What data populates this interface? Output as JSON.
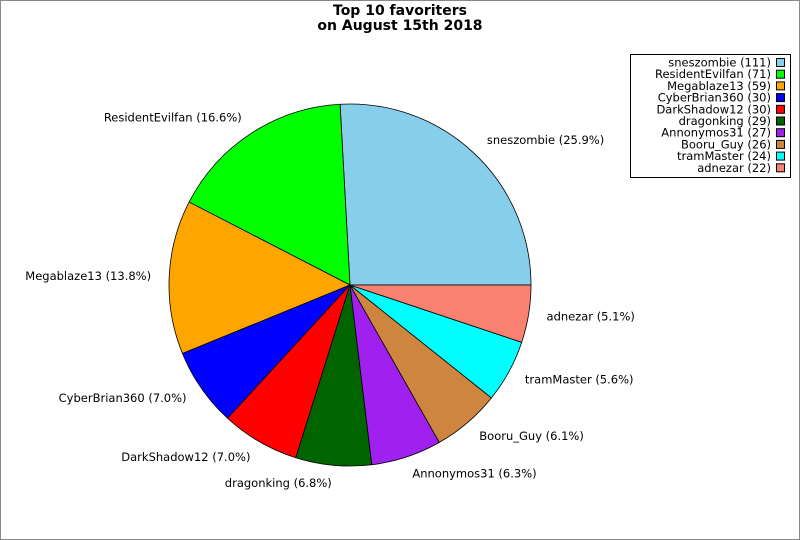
{
  "chart_data": {
    "type": "pie",
    "title_lines": [
      "Top 10 favoriters",
      "on August 15th 2018"
    ],
    "values": [
      111,
      71,
      59,
      30,
      30,
      29,
      27,
      26,
      24,
      22
    ],
    "labels": [
      "sneszombie (25.9%)",
      "ResidentEvilfan (16.6%)",
      "Megablaze13 (13.8%)",
      "CyberBrian360 (7.0%)",
      "DarkShadow12 (7.0%)",
      "dragonking (6.8%)",
      "Annonymos31 (6.3%)",
      "Booru_Guy (6.1%)",
      "tramMaster (5.6%)",
      "adnezar (5.1%)"
    ],
    "legend_entries": [
      "sneszombie (111)",
      "ResidentEvilfan (71)",
      "Megablaze13 (59)",
      "CyberBrian360 (30)",
      "DarkShadow12 (30)",
      "dragonking (29)",
      "Annonymos31 (27)",
      "Booru_Guy (26)",
      "tramMaster (24)",
      "adnezar (22)"
    ],
    "colors": [
      "#87ceeb",
      "#00ff00",
      "#ffa500",
      "#0000ff",
      "#ff0000",
      "#006400",
      "#a020f0",
      "#cd853f",
      "#00ffff",
      "#fa8072"
    ],
    "legend_position": "upper right"
  }
}
